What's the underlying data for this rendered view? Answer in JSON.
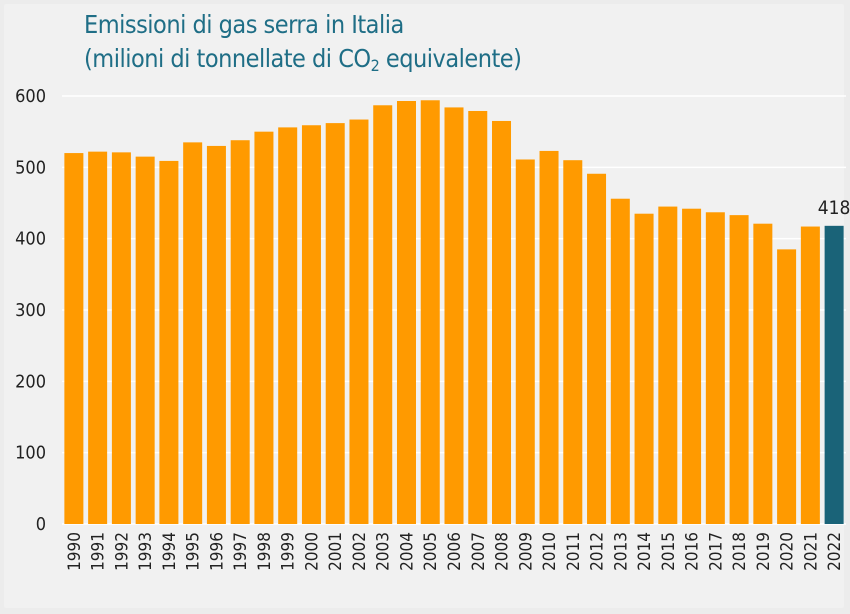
{
  "title": {
    "line1": "Emissioni di gas serra in Italia",
    "line2_pre": "(milioni di tonnellate di CO",
    "line2_sub": "2",
    "line2_post": " equivalente)"
  },
  "colors": {
    "bar": "#ff9a00",
    "highlight": "#1a6378",
    "gridline": "#ffffff",
    "title": "#1f6e86"
  },
  "chart_data": {
    "type": "bar",
    "title": "Emissioni di gas serra in Italia (milioni di tonnellate di CO2 equivalente)",
    "xlabel": "",
    "ylabel": "",
    "ylim": [
      0,
      600
    ],
    "yticks": [
      0,
      100,
      200,
      300,
      400,
      500,
      600
    ],
    "grid": true,
    "legend": "none",
    "categories": [
      "1990",
      "1991",
      "1992",
      "1993",
      "1994",
      "1995",
      "1996",
      "1997",
      "1998",
      "1999",
      "2000",
      "2001",
      "2002",
      "2003",
      "2004",
      "2005",
      "2006",
      "2007",
      "2008",
      "2009",
      "2010",
      "2011",
      "2012",
      "2013",
      "2014",
      "2015",
      "2016",
      "2017",
      "2018",
      "2019",
      "2020",
      "2021",
      "2022"
    ],
    "values": [
      520,
      522,
      521,
      515,
      509,
      535,
      530,
      538,
      550,
      556,
      559,
      562,
      567,
      587,
      593,
      594,
      584,
      579,
      565,
      511,
      523,
      510,
      491,
      456,
      435,
      445,
      442,
      437,
      433,
      421,
      385,
      417,
      418
    ],
    "highlighted": "2022",
    "data_labels": [
      {
        "category": "2022",
        "text": "418"
      }
    ]
  }
}
